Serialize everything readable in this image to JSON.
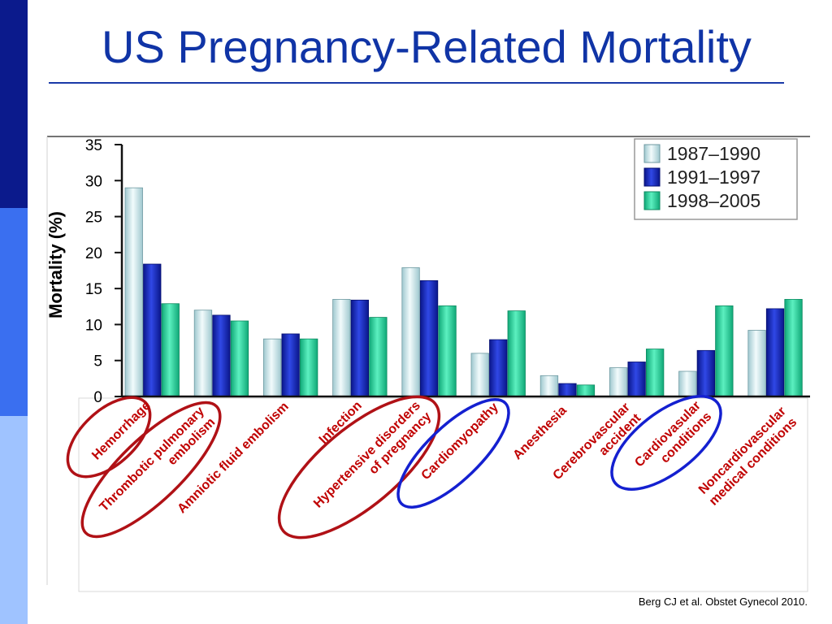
{
  "slide": {
    "title": "US Pregnancy-Related Mortality",
    "citation": "Berg CJ et al. Obstet Gynecol 2010."
  },
  "colors": {
    "band_top": "#0b1a8c",
    "band_mid": "#3a6ff0",
    "band_bottom": "#9fc3ff",
    "title": "#1034a6",
    "circle_red": "#b01116",
    "circle_blue": "#1420d0"
  },
  "chart_data": {
    "type": "bar",
    "title": "",
    "xlabel": "",
    "ylabel": "Mortality (%)",
    "ylim": [
      0,
      35
    ],
    "yticks": [
      0,
      5,
      10,
      15,
      20,
      25,
      30,
      35
    ],
    "legend_position": "top-right",
    "categories": [
      "Hemorrhage",
      "Thrombotic pulmonary embolism",
      "Amniotic fluid embolism",
      "Infection",
      "Hypertensive disorders of pregnancy",
      "Cardiomyopathy",
      "Anesthesia",
      "Cerebrovascular accident",
      "Cardiovasular conditions",
      "Noncardiovascular medical conditions"
    ],
    "category_label_lines": [
      [
        "Hemorrhage"
      ],
      [
        "Thrombotic pulmonary",
        "embolism"
      ],
      [
        "Amniotic fluid embolism"
      ],
      [
        "Infection"
      ],
      [
        "Hypertensive disorders",
        "of pregnancy"
      ],
      [
        "Cardiomyopathy"
      ],
      [
        "Anesthesia"
      ],
      [
        "Cerebrovascular",
        "accident"
      ],
      [
        "Cardiovasular",
        "conditions"
      ],
      [
        "Noncardiovascular",
        "medical conditions"
      ]
    ],
    "circled": [
      {
        "category": "Hemorrhage",
        "color": "red"
      },
      {
        "category": "Thrombotic pulmonary embolism",
        "color": "red"
      },
      {
        "category": "Hypertensive disorders of pregnancy",
        "color": "red"
      },
      {
        "category": "Cardiomyopathy",
        "color": "blue"
      },
      {
        "category": "Cardiovasular conditions",
        "color": "blue"
      }
    ],
    "series": [
      {
        "name": "1987–1990",
        "color": "#cde9ec",
        "values": [
          29.0,
          12.0,
          8.0,
          13.5,
          17.9,
          6.0,
          2.9,
          4.0,
          3.5,
          9.2
        ]
      },
      {
        "name": "1991–1997",
        "color": "#1a2fc9",
        "values": [
          18.4,
          11.3,
          8.7,
          13.4,
          16.1,
          7.9,
          1.8,
          4.8,
          6.4,
          12.2
        ]
      },
      {
        "name": "1998–2005",
        "color": "#22d39a",
        "values": [
          12.9,
          10.5,
          8.0,
          11.0,
          12.6,
          11.9,
          1.6,
          6.6,
          12.6,
          13.5
        ]
      }
    ]
  }
}
